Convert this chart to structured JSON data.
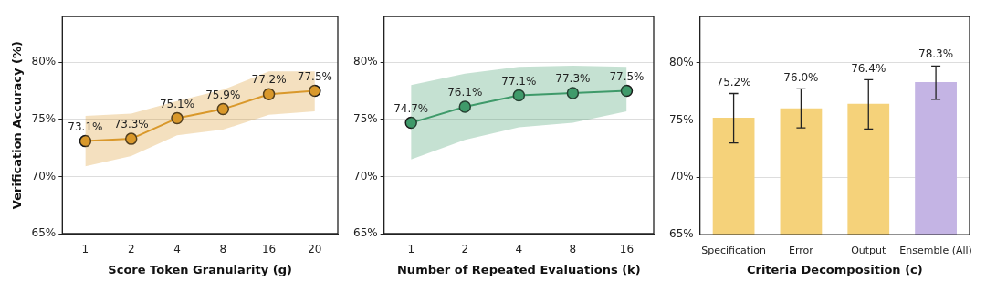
{
  "chart_data": [
    {
      "type": "line",
      "ylabel": "Verification Accuracy (%)",
      "xlabel": "Score Token Granularity (g)",
      "categories": [
        "1",
        "2",
        "4",
        "8",
        "16",
        "20"
      ],
      "series": [
        {
          "color": "#d9992b",
          "values": [
            73.1,
            73.3,
            75.1,
            75.9,
            77.2,
            77.5
          ],
          "lower": [
            70.9,
            71.8,
            73.6,
            74.1,
            75.4,
            75.7
          ],
          "upper": [
            75.3,
            75.5,
            76.6,
            77.6,
            79.2,
            79.2
          ],
          "value_labels": [
            "73.1%",
            "73.3%",
            "75.1%",
            "75.9%",
            "77.2%",
            "77.5%"
          ]
        }
      ],
      "ylim": [
        65,
        84
      ],
      "yticks": [
        {
          "value": 65,
          "label": "65%"
        },
        {
          "value": 70,
          "label": "70%"
        },
        {
          "value": 75,
          "label": "75%"
        },
        {
          "value": 80,
          "label": "80%"
        }
      ],
      "grid": "y",
      "marker": "circle"
    },
    {
      "type": "line",
      "xlabel": "Number of Repeated Evaluations (k)",
      "categories": [
        "1",
        "2",
        "4",
        "8",
        "16"
      ],
      "series": [
        {
          "color": "#3f9a6a",
          "values": [
            74.7,
            76.1,
            77.1,
            77.3,
            77.5
          ],
          "lower": [
            71.5,
            73.2,
            74.3,
            74.7,
            75.7
          ],
          "upper": [
            78.0,
            79.0,
            79.6,
            79.7,
            79.6
          ],
          "value_labels": [
            "74.7%",
            "76.1%",
            "77.1%",
            "77.3%",
            "77.5%"
          ]
        }
      ],
      "ylim": [
        65,
        84
      ],
      "yticks": [
        {
          "value": 65,
          "label": "65%"
        },
        {
          "value": 70,
          "label": "70%"
        },
        {
          "value": 75,
          "label": "75%"
        },
        {
          "value": 80,
          "label": "80%"
        }
      ],
      "grid": "y",
      "marker": "circle"
    },
    {
      "type": "bar",
      "xlabel": "Criteria Decomposition (c)",
      "categories": [
        "Specification",
        "Error",
        "Output",
        "Ensemble (All)"
      ],
      "values": [
        75.2,
        76.0,
        76.4,
        78.3
      ],
      "colors": [
        "#f5d27a",
        "#f5d27a",
        "#f5d27a",
        "#c4b4e4"
      ],
      "errors": [
        [
          73.0,
          77.3
        ],
        [
          74.3,
          77.7
        ],
        [
          74.2,
          78.5
        ],
        [
          76.8,
          79.7
        ]
      ],
      "value_labels": [
        "75.2%",
        "76.0%",
        "76.4%",
        "78.3%"
      ],
      "ylim": [
        65,
        84
      ],
      "yticks": [
        {
          "value": 65,
          "label": "65%"
        },
        {
          "value": 70,
          "label": "70%"
        },
        {
          "value": 75,
          "label": "75%"
        },
        {
          "value": 80,
          "label": "80%"
        }
      ],
      "grid": "y"
    }
  ]
}
